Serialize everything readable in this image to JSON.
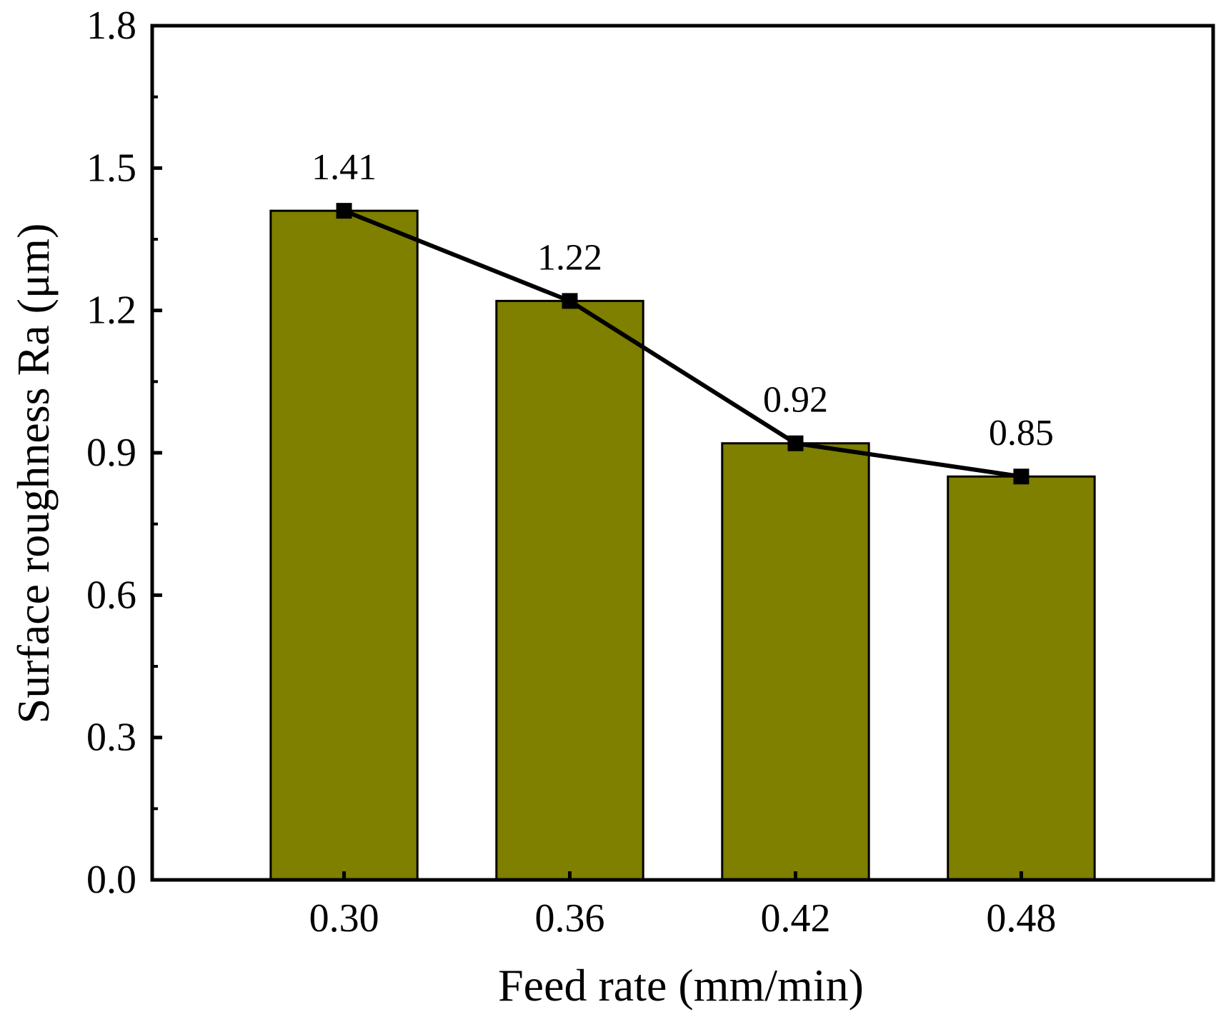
{
  "chart_data": {
    "type": "bar",
    "categories": [
      "0.30",
      "0.36",
      "0.42",
      "0.48"
    ],
    "values": [
      1.41,
      1.22,
      0.92,
      0.85
    ],
    "data_labels": [
      "1.41",
      "1.22",
      "0.92",
      "0.85"
    ],
    "overlay": "line-with-square-markers",
    "xlabel": "Feed rate (mm/min)",
    "ylabel": "Surface roughness Ra (μm)",
    "ylim": [
      0,
      1.8
    ],
    "yticks": [
      "0.0",
      "0.3",
      "0.6",
      "0.9",
      "1.2",
      "1.5",
      "1.8"
    ],
    "grid": false,
    "colors": {
      "bar_fill": "#7f7f00",
      "bar_stroke": "#000000",
      "line": "#000000"
    }
  }
}
